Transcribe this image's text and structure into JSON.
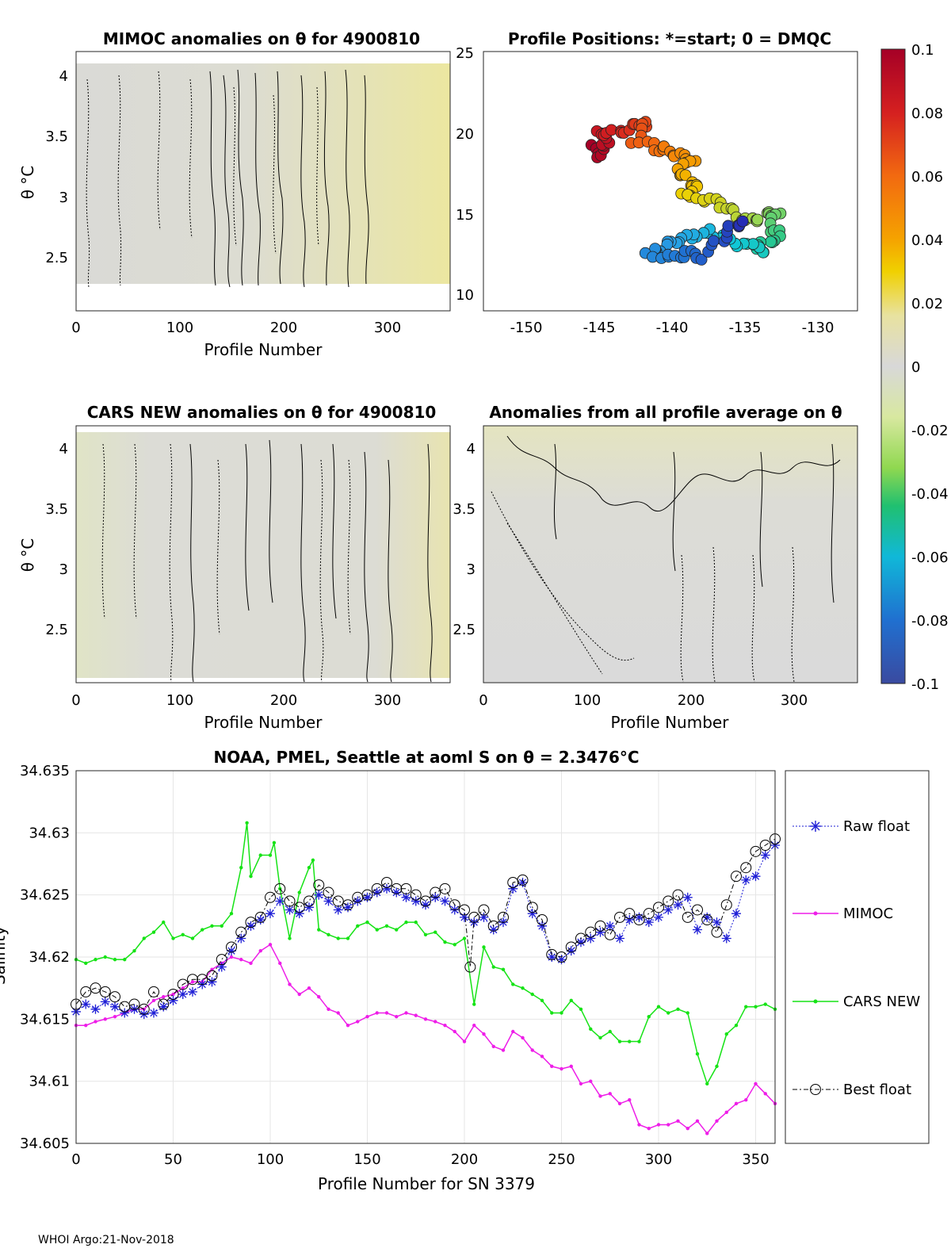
{
  "panels": {
    "mimoc": {
      "title": "MIMOC anomalies on θ  for 4900810",
      "xlabel": "Profile Number",
      "ylabel": "θ °C",
      "xticks": [
        "0",
        "100",
        "200",
        "300"
      ],
      "yticks": [
        "4",
        "3.5",
        "3",
        "2.5"
      ]
    },
    "positions": {
      "title": "Profile Positions: *=start; 0 = DMQC",
      "xticks": [
        "-150",
        "-145",
        "-140",
        "-135",
        "-130"
      ],
      "yticks": [
        "25",
        "20",
        "15",
        "10"
      ]
    },
    "cars": {
      "title": "CARS NEW anomalies on θ for 4900810",
      "xlabel": "Profile Number",
      "ylabel": "θ °C",
      "xticks": [
        "0",
        "100",
        "200",
        "300"
      ],
      "yticks": [
        "4",
        "3.5",
        "3",
        "2.5"
      ]
    },
    "avg": {
      "title": "Anomalies from all profile average on θ",
      "xlabel": "Profile Number",
      "xticks": [
        "0",
        "100",
        "200",
        "300"
      ],
      "yticks": [
        "4",
        "3.5",
        "3",
        "2.5"
      ]
    }
  },
  "colorbar": {
    "ticks": [
      "0.1",
      "0.08",
      "0.06",
      "0.04",
      "0.02",
      "0",
      "-0.02",
      "-0.04",
      "-0.06",
      "-0.08",
      "-0.1"
    ]
  },
  "footer": "WHOI Argo:21-Nov-2018",
  "colors": {
    "raw": "#1f1fd6",
    "mimoc": "#ee1ee8",
    "cars": "#16e316",
    "best": "#000000"
  },
  "chart_data": {
    "type": "line",
    "title": "NOAA, PMEL, Seattle at aoml S on θ = 2.3476°C",
    "xlabel": "Profile Number for SN 3379",
    "ylabel": "Salinity",
    "xlim": [
      0,
      360
    ],
    "ylim": [
      34.605,
      34.635
    ],
    "xticks": [
      0,
      50,
      100,
      150,
      200,
      250,
      300,
      350
    ],
    "yticks": [
      "34.605",
      "34.61",
      "34.615",
      "34.62",
      "34.625",
      "34.63",
      "34.635"
    ],
    "legend": [
      "Raw float",
      "MIMOC",
      "CARS NEW",
      "Best float"
    ],
    "series": [
      {
        "name": "Raw float",
        "x": [
          0,
          5,
          10,
          15,
          20,
          25,
          30,
          35,
          40,
          45,
          50,
          55,
          60,
          65,
          70,
          75,
          80,
          85,
          90,
          95,
          100,
          105,
          110,
          115,
          120,
          125,
          130,
          135,
          140,
          145,
          150,
          155,
          160,
          165,
          170,
          175,
          180,
          185,
          190,
          195,
          200,
          205,
          210,
          215,
          220,
          225,
          230,
          235,
          240,
          245,
          250,
          255,
          260,
          265,
          270,
          275,
          280,
          285,
          290,
          295,
          300,
          305,
          310,
          315,
          320,
          325,
          330,
          335,
          340,
          345,
          350,
          355,
          360
        ],
        "values": [
          34.6156,
          34.6162,
          34.6158,
          34.6164,
          34.616,
          34.6155,
          34.6158,
          34.6154,
          34.6155,
          34.616,
          34.6165,
          34.617,
          34.6172,
          34.6178,
          34.618,
          34.6192,
          34.6205,
          34.6215,
          34.6225,
          34.623,
          34.6235,
          34.6245,
          34.6238,
          34.6235,
          34.624,
          34.625,
          34.6245,
          34.6238,
          34.624,
          34.6245,
          34.6248,
          34.6252,
          34.6255,
          34.6252,
          34.6248,
          34.6245,
          34.6242,
          34.6248,
          34.6245,
          34.6238,
          34.6232,
          34.6228,
          34.6232,
          34.6222,
          34.6228,
          34.6255,
          34.626,
          34.6235,
          34.6225,
          34.62,
          34.6198,
          34.6205,
          34.6212,
          34.6215,
          34.622,
          34.6225,
          34.6215,
          34.623,
          34.6232,
          34.6228,
          34.6232,
          34.6238,
          34.6242,
          34.6248,
          34.6222,
          34.6232,
          34.6228,
          34.6215,
          34.6235,
          34.6262,
          34.6265,
          34.6282,
          34.629
        ]
      },
      {
        "name": "MIMOC",
        "x": [
          0,
          5,
          10,
          15,
          20,
          25,
          30,
          35,
          40,
          45,
          50,
          55,
          60,
          65,
          70,
          75,
          80,
          85,
          90,
          95,
          100,
          105,
          110,
          115,
          120,
          125,
          130,
          135,
          140,
          145,
          150,
          155,
          160,
          165,
          170,
          175,
          180,
          185,
          190,
          195,
          200,
          205,
          210,
          215,
          220,
          225,
          230,
          235,
          240,
          245,
          250,
          255,
          260,
          265,
          270,
          275,
          280,
          285,
          290,
          295,
          300,
          305,
          310,
          315,
          320,
          325,
          330,
          335,
          340,
          345,
          350,
          355,
          360
        ],
        "values": [
          34.6145,
          34.6145,
          34.6148,
          34.615,
          34.6152,
          34.6155,
          34.6158,
          34.6158,
          34.6165,
          34.6168,
          34.617,
          34.6175,
          34.618,
          34.618,
          34.619,
          34.6195,
          34.62,
          34.6198,
          34.6195,
          34.6205,
          34.621,
          34.6195,
          34.6178,
          34.617,
          34.6175,
          34.6168,
          34.6158,
          34.6155,
          34.6145,
          34.6148,
          34.6152,
          34.6155,
          34.6155,
          34.6152,
          34.6155,
          34.6153,
          34.615,
          34.6148,
          34.6145,
          34.614,
          34.6132,
          34.6145,
          34.6138,
          34.6128,
          34.6125,
          34.614,
          34.6135,
          34.6125,
          34.612,
          34.6112,
          34.611,
          34.6112,
          34.6098,
          34.61,
          34.6088,
          34.609,
          34.6082,
          34.6085,
          34.6065,
          34.6062,
          34.6065,
          34.6065,
          34.6068,
          34.6062,
          34.6068,
          34.6058,
          34.6068,
          34.6075,
          34.6082,
          34.6085,
          34.6098,
          34.609,
          34.6082
        ]
      },
      {
        "name": "CARS NEW",
        "x": [
          0,
          5,
          10,
          15,
          20,
          25,
          30,
          35,
          40,
          45,
          50,
          55,
          60,
          65,
          70,
          75,
          80,
          85,
          88,
          90,
          95,
          100,
          102,
          105,
          110,
          115,
          120,
          122,
          125,
          130,
          135,
          140,
          145,
          150,
          155,
          160,
          165,
          170,
          175,
          180,
          185,
          190,
          195,
          200,
          205,
          210,
          215,
          220,
          225,
          230,
          235,
          240,
          245,
          250,
          255,
          260,
          265,
          270,
          275,
          280,
          285,
          290,
          295,
          300,
          305,
          310,
          315,
          320,
          325,
          330,
          335,
          340,
          345,
          350,
          355,
          360
        ],
        "values": [
          34.6198,
          34.6195,
          34.6198,
          34.62,
          34.6198,
          34.6198,
          34.6205,
          34.6215,
          34.622,
          34.6228,
          34.6215,
          34.6218,
          34.6215,
          34.6222,
          34.6225,
          34.6225,
          34.6235,
          34.6272,
          34.6308,
          34.6265,
          34.6282,
          34.6282,
          34.6292,
          34.6255,
          34.6215,
          34.6252,
          34.6272,
          34.6278,
          34.6222,
          34.6218,
          34.6215,
          34.6215,
          34.6225,
          34.6228,
          34.6222,
          34.6225,
          34.6222,
          34.6228,
          34.6228,
          34.6218,
          34.622,
          34.6212,
          34.621,
          34.6215,
          34.6162,
          34.6208,
          34.6192,
          34.619,
          34.6178,
          34.6175,
          34.617,
          34.6165,
          34.6155,
          34.6155,
          34.6165,
          34.6158,
          34.6142,
          34.6135,
          34.614,
          34.6132,
          34.6132,
          34.6132,
          34.6152,
          34.616,
          34.6155,
          34.6158,
          34.6155,
          34.6122,
          34.6098,
          34.6112,
          34.6138,
          34.6145,
          34.616,
          34.616,
          34.6162,
          34.6158
        ]
      },
      {
        "name": "Best float",
        "x": [
          0,
          5,
          10,
          15,
          20,
          25,
          30,
          35,
          40,
          45,
          50,
          55,
          60,
          65,
          70,
          75,
          80,
          85,
          90,
          95,
          100,
          105,
          110,
          115,
          120,
          125,
          130,
          135,
          140,
          145,
          150,
          155,
          160,
          165,
          170,
          175,
          180,
          185,
          190,
          195,
          200,
          203,
          205,
          210,
          215,
          220,
          225,
          230,
          235,
          240,
          245,
          250,
          255,
          260,
          265,
          270,
          275,
          280,
          285,
          290,
          295,
          300,
          305,
          310,
          315,
          320,
          325,
          330,
          335,
          340,
          345,
          350,
          355,
          360
        ],
        "values": [
          34.6162,
          34.6172,
          34.6175,
          34.6172,
          34.6168,
          34.616,
          34.6162,
          34.6158,
          34.6172,
          34.6162,
          34.617,
          34.6178,
          34.6182,
          34.6182,
          34.6185,
          34.6198,
          34.6208,
          34.622,
          34.6228,
          34.6232,
          34.6248,
          34.6255,
          34.6245,
          34.624,
          34.6245,
          34.6258,
          34.6252,
          34.6245,
          34.6242,
          34.6248,
          34.625,
          34.6255,
          34.626,
          34.6255,
          34.6255,
          34.625,
          34.6245,
          34.6252,
          34.6255,
          34.6242,
          34.6238,
          34.6192,
          34.6232,
          34.6238,
          34.6225,
          34.6232,
          34.626,
          34.6262,
          34.624,
          34.623,
          34.6202,
          34.62,
          34.6208,
          34.6215,
          34.622,
          34.6225,
          34.6218,
          34.6232,
          34.6235,
          34.623,
          34.6235,
          34.624,
          34.6245,
          34.625,
          34.6232,
          34.6238,
          34.623,
          34.622,
          34.6242,
          34.6265,
          34.6272,
          34.6285,
          34.629,
          34.6295
        ]
      }
    ]
  }
}
